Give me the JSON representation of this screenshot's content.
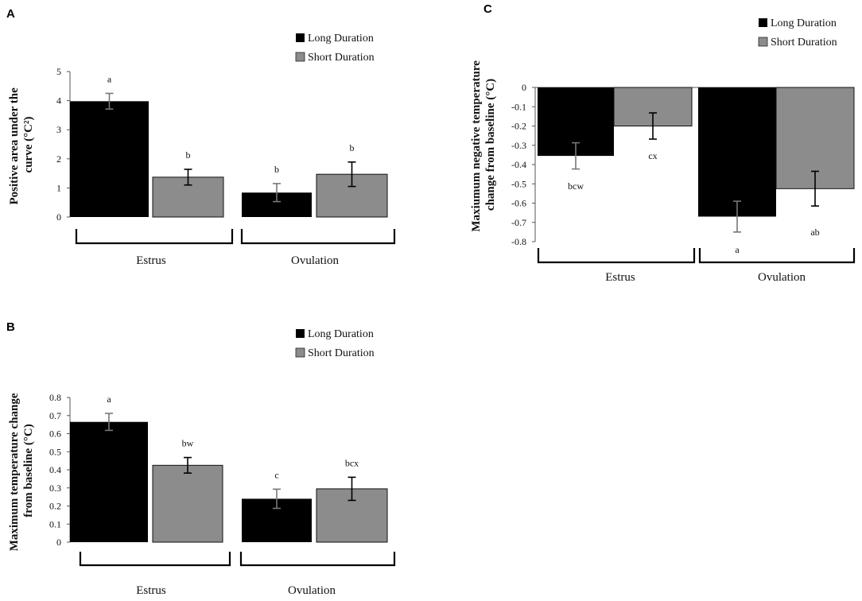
{
  "figure": {
    "panels": [
      {
        "panel_label": "A",
        "ylabel_lines": [
          "Positive area under the",
          "curve (°C²)"
        ],
        "legend": [
          "Long Duration",
          "Short Duration"
        ],
        "tick_labels": [
          "0",
          "1",
          "2",
          "3",
          "4",
          "5"
        ],
        "groups": [
          "Estrus",
          "Ovulation"
        ],
        "annotations": [
          "a",
          "b",
          "b",
          "b"
        ]
      },
      {
        "panel_label": "B",
        "ylabel_lines": [
          "Maximum temperature change",
          "from baseline (°C)"
        ],
        "legend": [
          "Long Duration",
          "Short Duration"
        ],
        "tick_labels": [
          "0",
          "0.1",
          "0.2",
          "0.3",
          "0.4",
          "0.5",
          "0.6",
          "0.7",
          "0.8"
        ],
        "groups": [
          "Estrus",
          "Ovulation"
        ],
        "annotations": [
          "a",
          "bw",
          "c",
          "bcx"
        ]
      },
      {
        "panel_label": "C",
        "ylabel_lines": [
          "Maxiumum negative temperature",
          "change from baseline (°C)"
        ],
        "legend": [
          "Long Duration",
          "Short Duration"
        ],
        "tick_labels": [
          "0",
          "-0.1",
          "-0.2",
          "-0.3",
          "-0.4",
          "-0.5",
          "-0.6",
          "-0.7",
          "-0.8"
        ],
        "groups": [
          "Estrus",
          "Ovulation"
        ],
        "annotations": [
          "bcw",
          "cx",
          "a",
          "ab"
        ]
      }
    ]
  },
  "colors": {
    "long": "#000000",
    "short": "#8c8c8c",
    "axis": "#555555"
  },
  "chart_data": [
    {
      "panel": "A",
      "type": "bar",
      "categories": [
        "Estrus",
        "Ovulation"
      ],
      "series": [
        {
          "name": "Long Duration",
          "values": [
            3.98,
            0.84
          ],
          "errors": [
            0.27,
            0.31
          ],
          "labels": [
            "a",
            "b"
          ]
        },
        {
          "name": "Short Duration",
          "values": [
            1.37,
            1.47
          ],
          "errors": [
            0.27,
            0.42
          ],
          "labels": [
            "b",
            "b"
          ]
        }
      ],
      "xlabel": "",
      "ylabel": "Positive area under the curve (°C²)",
      "ylim": [
        0,
        5
      ],
      "ticks": [
        0,
        1,
        2,
        3,
        4,
        5
      ]
    },
    {
      "panel": "B",
      "type": "bar",
      "categories": [
        "Estrus",
        "Ovulation"
      ],
      "series": [
        {
          "name": "Long Duration",
          "values": [
            0.665,
            0.24
          ],
          "errors": [
            0.047,
            0.053
          ],
          "labels": [
            "a",
            "c"
          ]
        },
        {
          "name": "Short Duration",
          "values": [
            0.425,
            0.295
          ],
          "errors": [
            0.043,
            0.064
          ],
          "labels": [
            "bw",
            "bcx"
          ]
        }
      ],
      "xlabel": "",
      "ylabel": "Maximum temperature change from baseline (°C)",
      "ylim": [
        0,
        0.8
      ],
      "ticks": [
        0,
        0.1,
        0.2,
        0.3,
        0.4,
        0.5,
        0.6,
        0.7,
        0.8
      ]
    },
    {
      "panel": "C",
      "type": "bar",
      "categories": [
        "Estrus",
        "Ovulation"
      ],
      "series": [
        {
          "name": "Long Duration",
          "values": [
            -0.355,
            -0.67
          ],
          "errors": [
            0.068,
            0.08
          ],
          "labels": [
            "bcw",
            "a"
          ]
        },
        {
          "name": "Short Duration",
          "values": [
            -0.2,
            -0.525
          ],
          "errors": [
            0.068,
            0.09
          ],
          "labels": [
            "cx",
            "ab"
          ]
        }
      ],
      "xlabel": "",
      "ylabel": "Maxiumum negative temperature change from baseline (°C)",
      "ylim": [
        -0.8,
        0
      ],
      "ticks": [
        0,
        -0.1,
        -0.2,
        -0.3,
        -0.4,
        -0.5,
        -0.6,
        -0.7,
        -0.8
      ]
    }
  ]
}
